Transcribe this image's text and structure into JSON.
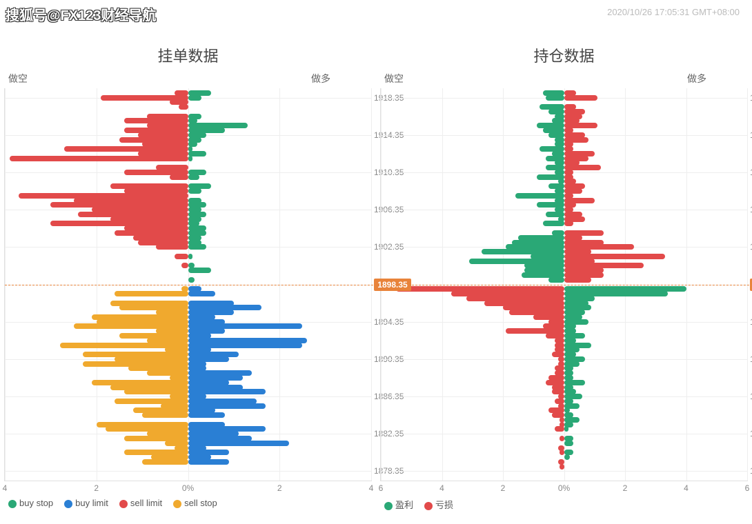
{
  "watermark": "搜狐号@FX123财经导航",
  "timestamp": "2020/10/26 17:05:31 GMT+08:00",
  "colors": {
    "buy_stop": "#2aa876",
    "buy_limit": "#2a7fd4",
    "sell_limit": "#e24a4a",
    "sell_stop": "#f0a92e",
    "profit": "#2aa876",
    "loss": "#e24a4a",
    "grid": "#eeeeee",
    "border": "#e0e0e0",
    "text": "#666666",
    "current": "#e8833a",
    "background": "#ffffff"
  },
  "price_axis": {
    "min": 1877.35,
    "max": 1919.35,
    "ticks": [
      1918.35,
      1914.35,
      1910.35,
      1906.35,
      1902.35,
      1898.35,
      1894.35,
      1890.35,
      1886.35,
      1882.35,
      1878.35
    ],
    "current": 1898.35,
    "grid_step": 4
  },
  "left_chart": {
    "title": "挂单数据",
    "left_label": "做空",
    "right_label": "做多",
    "x_max": 4,
    "x_ticks": [
      4,
      2,
      "0%",
      2,
      4
    ],
    "legend": [
      {
        "label": "buy stop",
        "color": "#2aa876"
      },
      {
        "label": "buy limit",
        "color": "#2a7fd4"
      },
      {
        "label": "sell limit",
        "color": "#e24a4a"
      },
      {
        "label": "sell stop",
        "color": "#f0a92e"
      }
    ],
    "rows": [
      {
        "p": 1918.85,
        "r": 0.5,
        "l": 0.3
      },
      {
        "p": 1918.35,
        "r": 0.3,
        "l": 1.9
      },
      {
        "p": 1917.85,
        "r": 0.0,
        "l": 0.4
      },
      {
        "p": 1917.35,
        "r": 0.0,
        "l": 0.2
      },
      {
        "p": 1916.35,
        "r": 0.3,
        "l": 0.9
      },
      {
        "p": 1915.85,
        "r": 0.2,
        "l": 1.4
      },
      {
        "p": 1915.35,
        "r": 1.3,
        "l": 0.9
      },
      {
        "p": 1914.85,
        "r": 0.8,
        "l": 1.4
      },
      {
        "p": 1914.35,
        "r": 0.4,
        "l": 1.1
      },
      {
        "p": 1913.85,
        "r": 0.3,
        "l": 1.5
      },
      {
        "p": 1913.35,
        "r": 0.2,
        "l": 1.0
      },
      {
        "p": 1912.85,
        "r": 0.1,
        "l": 2.7
      },
      {
        "p": 1912.35,
        "r": 0.4,
        "l": 1.1
      },
      {
        "p": 1911.85,
        "r": 0.1,
        "l": 3.9
      },
      {
        "p": 1910.85,
        "r": 0.0,
        "l": 0.7
      },
      {
        "p": 1910.35,
        "r": 0.4,
        "l": 1.4
      },
      {
        "p": 1909.85,
        "r": 0.25,
        "l": 0.4
      },
      {
        "p": 1908.85,
        "r": 0.5,
        "l": 1.7
      },
      {
        "p": 1908.35,
        "r": 0.3,
        "l": 1.4
      },
      {
        "p": 1907.85,
        "r": 0.0,
        "l": 3.7
      },
      {
        "p": 1907.35,
        "r": 0.3,
        "l": 2.5
      },
      {
        "p": 1906.85,
        "r": 0.4,
        "l": 3.0
      },
      {
        "p": 1906.35,
        "r": 0.3,
        "l": 2.1
      },
      {
        "p": 1905.85,
        "r": 0.4,
        "l": 2.4
      },
      {
        "p": 1905.35,
        "r": 0.3,
        "l": 1.7
      },
      {
        "p": 1904.85,
        "r": 0.25,
        "l": 3.0
      },
      {
        "p": 1904.35,
        "r": 0.4,
        "l": 1.4
      },
      {
        "p": 1903.85,
        "r": 0.4,
        "l": 1.6
      },
      {
        "p": 1903.35,
        "r": 0.3,
        "l": 1.2
      },
      {
        "p": 1902.85,
        "r": 0.3,
        "l": 1.1
      },
      {
        "p": 1902.35,
        "r": 0.4,
        "l": 0.7
      },
      {
        "p": 1901.35,
        "r": 0.1,
        "l": 0.3
      },
      {
        "p": 1900.35,
        "r": 0.15,
        "l": 0.15
      },
      {
        "p": 1899.85,
        "r": 0.5,
        "l": 0.0
      },
      {
        "p": 1898.85,
        "r": 0.15,
        "l": 0.0
      },
      {
        "p": 1897.85,
        "r": 0.3,
        "l": 0.15
      },
      {
        "p": 1897.35,
        "r": 0.6,
        "l": 1.6
      },
      {
        "p": 1896.35,
        "r": 1.0,
        "l": 1.7
      },
      {
        "p": 1895.85,
        "r": 1.6,
        "l": 1.5
      },
      {
        "p": 1895.35,
        "r": 1.0,
        "l": 0.7
      },
      {
        "p": 1894.85,
        "r": 0.6,
        "l": 2.1
      },
      {
        "p": 1894.35,
        "r": 0.8,
        "l": 2.0
      },
      {
        "p": 1893.85,
        "r": 2.5,
        "l": 2.5
      },
      {
        "p": 1893.35,
        "r": 0.8,
        "l": 0.7
      },
      {
        "p": 1892.85,
        "r": 0.5,
        "l": 1.5
      },
      {
        "p": 1892.35,
        "r": 2.6,
        "l": 0.9
      },
      {
        "p": 1891.85,
        "r": 2.5,
        "l": 2.8
      },
      {
        "p": 1891.35,
        "r": 0.5,
        "l": 0.5
      },
      {
        "p": 1890.85,
        "r": 1.1,
        "l": 2.3
      },
      {
        "p": 1890.35,
        "r": 0.9,
        "l": 1.6
      },
      {
        "p": 1889.85,
        "r": 0.4,
        "l": 2.3
      },
      {
        "p": 1889.35,
        "r": 0.4,
        "l": 1.3
      },
      {
        "p": 1888.85,
        "r": 1.4,
        "l": 0.9
      },
      {
        "p": 1888.35,
        "r": 1.2,
        "l": 0.4
      },
      {
        "p": 1887.85,
        "r": 0.9,
        "l": 2.1
      },
      {
        "p": 1887.35,
        "r": 1.2,
        "l": 1.7
      },
      {
        "p": 1886.85,
        "r": 1.7,
        "l": 1.4
      },
      {
        "p": 1886.35,
        "r": 0.4,
        "l": 0.4
      },
      {
        "p": 1885.85,
        "r": 1.5,
        "l": 1.6
      },
      {
        "p": 1885.35,
        "r": 1.7,
        "l": 0.6
      },
      {
        "p": 1884.85,
        "r": 0.6,
        "l": 1.2
      },
      {
        "p": 1884.35,
        "r": 0.8,
        "l": 1.0
      },
      {
        "p": 1883.35,
        "r": 0.8,
        "l": 2.0
      },
      {
        "p": 1882.85,
        "r": 1.7,
        "l": 1.8
      },
      {
        "p": 1882.35,
        "r": 1.1,
        "l": 0.9
      },
      {
        "p": 1881.85,
        "r": 1.4,
        "l": 1.4
      },
      {
        "p": 1881.35,
        "r": 2.2,
        "l": 0.5
      },
      {
        "p": 1880.85,
        "r": 0.4,
        "l": 0.3
      },
      {
        "p": 1880.35,
        "r": 0.9,
        "l": 1.4
      },
      {
        "p": 1879.85,
        "r": 0.5,
        "l": 0.8
      },
      {
        "p": 1879.35,
        "r": 0.9,
        "l": 1.0
      }
    ]
  },
  "right_chart": {
    "title": "持仓数据",
    "left_label": "做空",
    "right_label": "做多",
    "x_max": 6,
    "x_ticks": [
      6,
      4,
      2,
      "0%",
      2,
      4,
      6
    ],
    "legend": [
      {
        "label": "盈利",
        "color": "#2aa876"
      },
      {
        "label": "亏损",
        "color": "#e24a4a"
      }
    ],
    "rows": [
      {
        "p": 1918.85,
        "l": 0.7,
        "r": 0.4
      },
      {
        "p": 1918.35,
        "l": 0.6,
        "r": 1.1
      },
      {
        "p": 1917.35,
        "l": 0.8,
        "r": 0.4
      },
      {
        "p": 1916.85,
        "l": 0.5,
        "r": 0.7
      },
      {
        "p": 1916.35,
        "l": 0.3,
        "r": 0.6
      },
      {
        "p": 1915.85,
        "l": 0.4,
        "r": 0.5
      },
      {
        "p": 1915.35,
        "l": 0.9,
        "r": 1.1
      },
      {
        "p": 1914.85,
        "l": 0.7,
        "r": 0.3
      },
      {
        "p": 1914.35,
        "l": 0.5,
        "r": 0.7
      },
      {
        "p": 1913.85,
        "l": 0.3,
        "r": 0.8
      },
      {
        "p": 1913.35,
        "l": 0.3,
        "r": 0.3
      },
      {
        "p": 1912.85,
        "l": 0.8,
        "r": 0.3
      },
      {
        "p": 1912.35,
        "l": 0.4,
        "r": 1.0
      },
      {
        "p": 1911.85,
        "l": 0.6,
        "r": 0.8
      },
      {
        "p": 1911.35,
        "l": 0.3,
        "r": 0.5
      },
      {
        "p": 1910.85,
        "l": 0.6,
        "r": 1.2
      },
      {
        "p": 1910.35,
        "l": 0.3,
        "r": 0.3
      },
      {
        "p": 1909.85,
        "l": 0.9,
        "r": 0.3
      },
      {
        "p": 1909.35,
        "l": 0.2,
        "r": 0.4
      },
      {
        "p": 1908.85,
        "l": 0.5,
        "r": 0.7
      },
      {
        "p": 1908.35,
        "l": 0.3,
        "r": 0.6
      },
      {
        "p": 1907.85,
        "l": 1.6,
        "r": 0.3
      },
      {
        "p": 1907.35,
        "l": 0.3,
        "r": 1.0
      },
      {
        "p": 1906.85,
        "l": 0.9,
        "r": 0.4
      },
      {
        "p": 1906.35,
        "l": 0.3,
        "r": 0.3
      },
      {
        "p": 1905.85,
        "l": 0.6,
        "r": 0.6
      },
      {
        "p": 1905.35,
        "l": 0.2,
        "r": 0.7
      },
      {
        "p": 1904.85,
        "l": 0.7,
        "r": 0.3
      },
      {
        "p": 1903.85,
        "l": 0.4,
        "r": 1.3
      },
      {
        "p": 1903.35,
        "l": 1.5,
        "r": 0.6
      },
      {
        "p": 1902.85,
        "l": 1.7,
        "r": 1.3
      },
      {
        "p": 1902.35,
        "l": 1.9,
        "r": 2.3
      },
      {
        "p": 1901.85,
        "l": 2.7,
        "r": 0.9
      },
      {
        "p": 1901.35,
        "l": 1.1,
        "r": 3.3
      },
      {
        "p": 1900.85,
        "l": 3.1,
        "r": 1.0
      },
      {
        "p": 1900.35,
        "l": 1.3,
        "r": 2.6
      },
      {
        "p": 1899.85,
        "l": 1.3,
        "r": 1.3
      },
      {
        "p": 1899.35,
        "l": 1.4,
        "r": 1.3
      },
      {
        "p": 1898.85,
        "l": 0.5,
        "r": 0.9
      },
      {
        "p": 1897.85,
        "l": 5.5,
        "r": 4.0
      },
      {
        "p": 1897.35,
        "l": 3.7,
        "r": 3.4
      },
      {
        "p": 1896.85,
        "l": 3.2,
        "r": 1.0
      },
      {
        "p": 1896.35,
        "l": 2.6,
        "r": 0.8
      },
      {
        "p": 1895.85,
        "l": 2.0,
        "r": 0.9
      },
      {
        "p": 1895.35,
        "l": 1.8,
        "r": 0.7
      },
      {
        "p": 1894.85,
        "l": 1.0,
        "r": 0.6
      },
      {
        "p": 1894.35,
        "l": 0.5,
        "r": 0.8
      },
      {
        "p": 1893.85,
        "l": 0.7,
        "r": 0.4
      },
      {
        "p": 1893.35,
        "l": 1.9,
        "r": 0.4
      },
      {
        "p": 1892.85,
        "l": 0.6,
        "r": 0.7
      },
      {
        "p": 1892.35,
        "l": 0.3,
        "r": 0.4
      },
      {
        "p": 1891.85,
        "l": 0.3,
        "r": 0.9
      },
      {
        "p": 1891.35,
        "l": 0.3,
        "r": 0.5
      },
      {
        "p": 1890.85,
        "l": 0.4,
        "r": 0.4
      },
      {
        "p": 1890.35,
        "l": 0.2,
        "r": 0.7
      },
      {
        "p": 1889.85,
        "l": 0.2,
        "r": 0.5
      },
      {
        "p": 1889.35,
        "l": 0.3,
        "r": 0.3
      },
      {
        "p": 1888.85,
        "l": 0.3,
        "r": 0.3
      },
      {
        "p": 1888.35,
        "l": 0.5,
        "r": 0.3
      },
      {
        "p": 1887.85,
        "l": 0.6,
        "r": 0.7
      },
      {
        "p": 1887.35,
        "l": 0.4,
        "r": 0.3
      },
      {
        "p": 1886.85,
        "l": 0.4,
        "r": 0.4
      },
      {
        "p": 1886.35,
        "l": 0.2,
        "r": 0.6
      },
      {
        "p": 1885.85,
        "l": 0.3,
        "r": 0.3
      },
      {
        "p": 1885.35,
        "l": 0.2,
        "r": 0.5
      },
      {
        "p": 1884.85,
        "l": 0.5,
        "r": 0.2
      },
      {
        "p": 1884.35,
        "l": 0.4,
        "r": 0.3
      },
      {
        "p": 1883.85,
        "l": 0.15,
        "r": 0.5
      },
      {
        "p": 1883.35,
        "l": 0.15,
        "r": 0.3
      },
      {
        "p": 1882.85,
        "l": 0.3,
        "r": 0.15
      },
      {
        "p": 1881.85,
        "l": 0.15,
        "r": 0.3
      },
      {
        "p": 1881.35,
        "l": 0.0,
        "r": 0.3
      },
      {
        "p": 1880.85,
        "l": 0.2,
        "r": 0.0
      },
      {
        "p": 1880.35,
        "l": 0.15,
        "r": 0.3
      },
      {
        "p": 1879.85,
        "l": 0.0,
        "r": 0.2
      },
      {
        "p": 1879.35,
        "l": 0.2,
        "r": 0.0
      },
      {
        "p": 1878.85,
        "l": 0.15,
        "r": 0.0
      }
    ]
  }
}
